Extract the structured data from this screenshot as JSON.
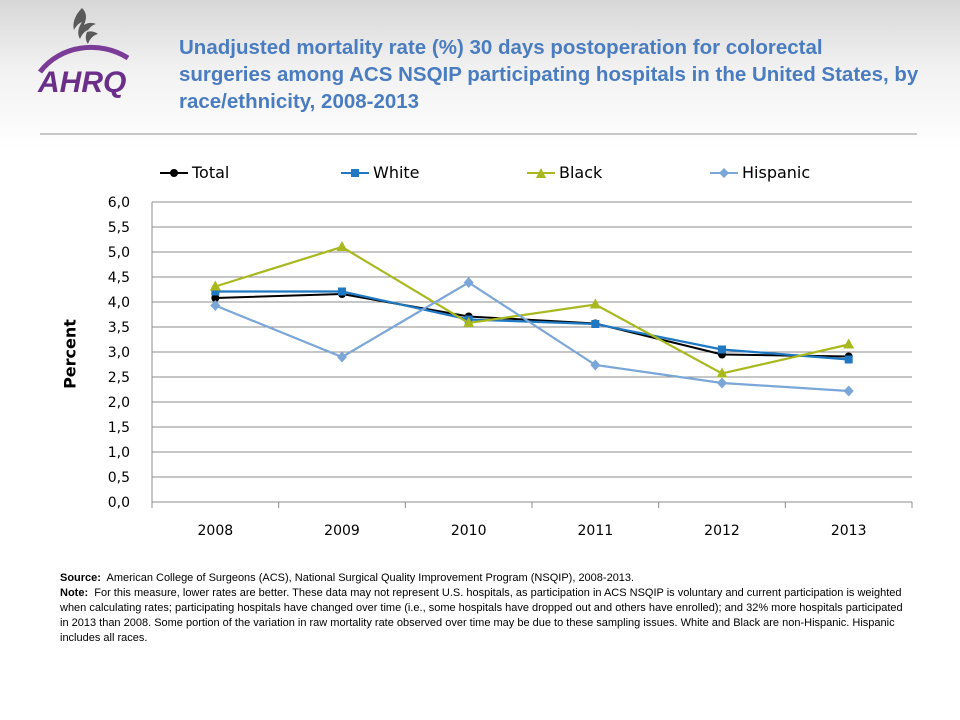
{
  "header": {
    "logo_text": "AHRQ",
    "title": "Unadjusted mortality rate (%) 30 days postoperation for colorectal surgeries among ACS NSQIP participating hospitals in the United States, by race/ethnicity, 2008-2013"
  },
  "notes": {
    "source_label": "Source:",
    "source_text": "American College of Surgeons (ACS), National Surgical Quality Improvement Program (NSQIP), 2008-2013.",
    "note_label": "Note:",
    "note_text": "For this measure, lower rates are better.  These  data may not represent U.S. hospitals, as participation in ACS NSQIP is voluntary and current participation is weighted when calculating rates; participating hospitals have changed over time (i.e., some hospitals have dropped out and others have enrolled); and 32% more hospitals participated in 2013 than 2008. Some portion of the variation in raw mortality rate  observed over time may be due to these sampling issues. White and Black are non-Hispanic. Hispanic includes all races."
  },
  "chart_data": {
    "type": "line",
    "title": "Unadjusted mortality rate (%) 30 days postoperation for colorectal surgeries among ACS NSQIP participating hospitals in the United States, by race/ethnicity, 2008-2013",
    "xlabel": "",
    "ylabel": "Percent",
    "categories": [
      "2008",
      "2009",
      "2010",
      "2011",
      "2012",
      "2013"
    ],
    "ylim": [
      0,
      6
    ],
    "yticks": [
      "0,0",
      "0,5",
      "1,0",
      "1,5",
      "2,0",
      "2,5",
      "3,0",
      "3,5",
      "4,0",
      "4,5",
      "5,0",
      "5,5",
      "6,0"
    ],
    "grid": true,
    "legend_position": "top",
    "series": [
      {
        "name": "Total",
        "color": "#000000",
        "marker": "circle",
        "values": [
          4.08,
          4.16,
          3.71,
          3.57,
          2.95,
          2.91
        ]
      },
      {
        "name": "White",
        "color": "#1f78c1",
        "marker": "square",
        "values": [
          4.21,
          4.21,
          3.65,
          3.56,
          3.05,
          2.85
        ]
      },
      {
        "name": "Black",
        "color": "#a9b81e",
        "marker": "triangle",
        "values": [
          4.31,
          5.1,
          3.58,
          3.95,
          2.57,
          3.15
        ]
      },
      {
        "name": "Hispanic",
        "color": "#7aa6d8",
        "marker": "diamond",
        "values": [
          3.93,
          2.9,
          4.39,
          2.74,
          2.38,
          2.22
        ]
      }
    ]
  }
}
